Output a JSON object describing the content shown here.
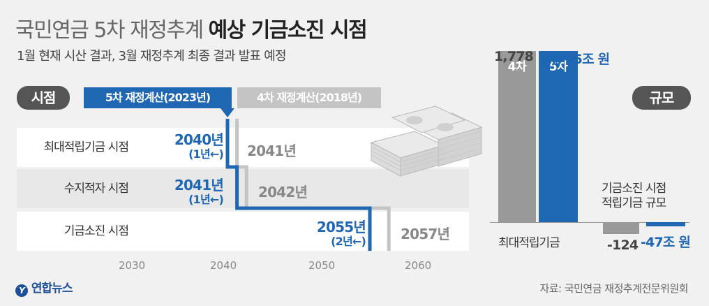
{
  "title": {
    "part1": "국민연금 5차 재정추계",
    "part2": "예상 기금소진 시점"
  },
  "subtitle": "1월 현재 시산 결과, 3월 재정추계 최종 결과 발표 예정",
  "timing_label": "시점",
  "scale_label": "규모",
  "source": "자료: 국민연금 재정추계전문위원회",
  "logo_text": "연합뉴스",
  "colors": {
    "fifth": "#1f66b3",
    "fourth": "#c4c4c4",
    "axis": "#888888",
    "pill": "#555555"
  },
  "chart_data": [
    {
      "type": "step-timeline",
      "x_ticks": [
        2030,
        2040,
        2050,
        2060
      ],
      "xlim": [
        2027,
        2065
      ],
      "rows": [
        "최대적립기금 시점",
        "수지적자 시점",
        "기금소진 시점"
      ],
      "series": [
        {
          "name": "5차 재정계산(2023년)",
          "years": [
            2040,
            2041,
            2055
          ],
          "year_labels": [
            "2040년",
            "2041년",
            "2055년"
          ],
          "diff_labels": [
            "(1년←)",
            "(1년←)",
            "(2년←)"
          ]
        },
        {
          "name": "4차 재정계산(2018년)",
          "years": [
            2041,
            2042,
            2057
          ],
          "year_labels": [
            "2041년",
            "2042년",
            "2057년"
          ]
        }
      ]
    },
    {
      "type": "bar",
      "unit": "조 원",
      "categories": [
        "최대적립기금",
        "기금소진 시점 적립기금 규모"
      ],
      "category_labels": [
        "최대적립기금",
        "기금소진 시점",
        "적립기금 규모"
      ],
      "series": [
        {
          "name": "4차",
          "values": [
            1778,
            -124
          ],
          "value_labels": [
            "1,778",
            "-124"
          ]
        },
        {
          "name": "5차",
          "values": [
            1775,
            -47
          ],
          "value_labels": [
            "1,775조 원",
            "-47조 원"
          ]
        }
      ]
    }
  ]
}
